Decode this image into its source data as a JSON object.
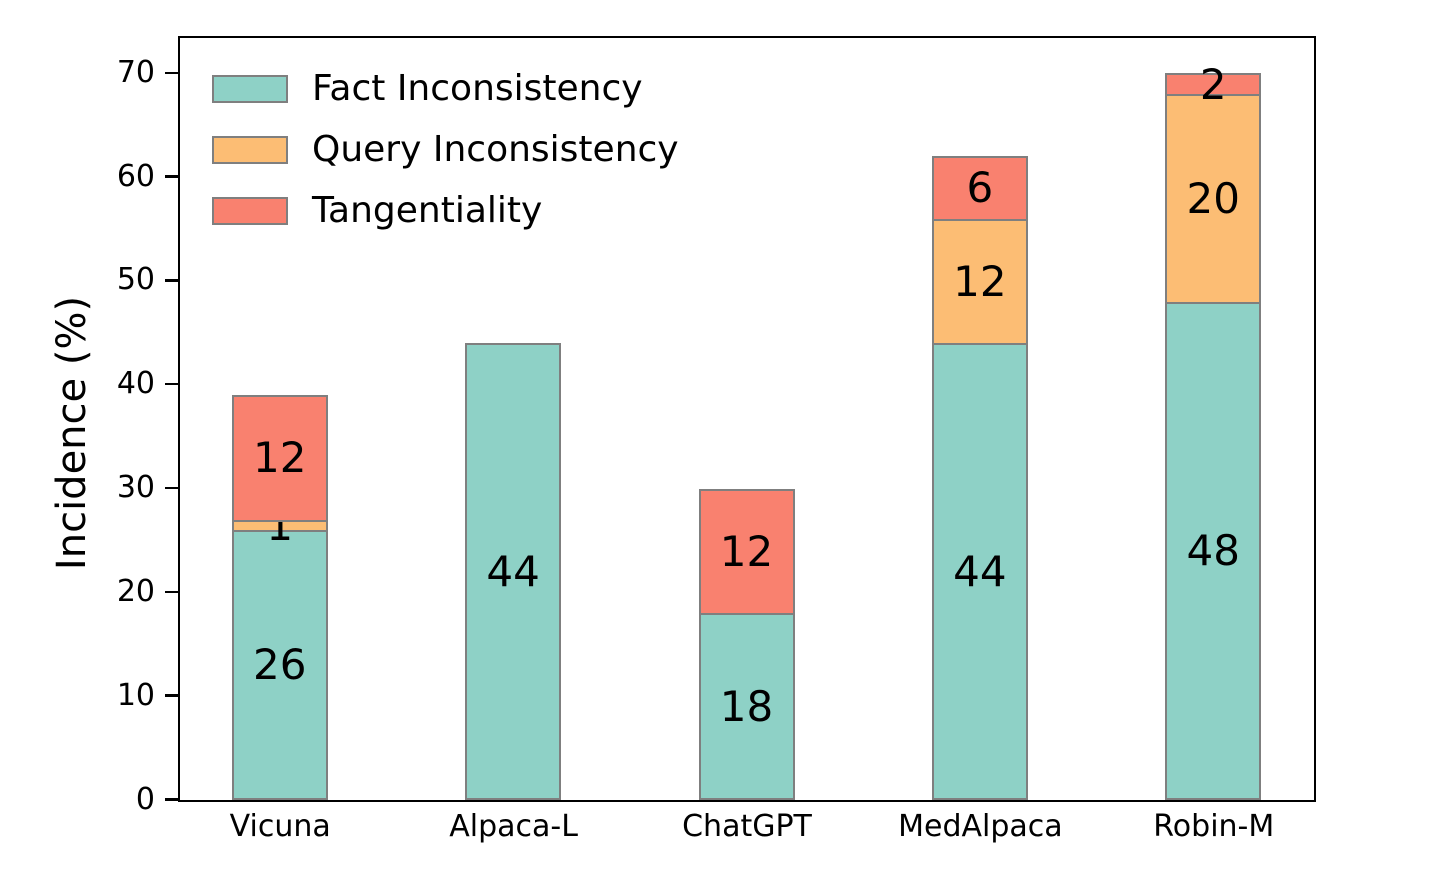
{
  "chart_data": {
    "type": "bar",
    "stacked": true,
    "title": "",
    "xlabel": "",
    "ylabel": "Incidence (%)",
    "categories": [
      "Vicuna",
      "Alpaca-L",
      "ChatGPT",
      "MedAlpaca",
      "Robin-M"
    ],
    "series": [
      {
        "name": "Fact Inconsistency",
        "color": "#8ed1c6",
        "values": [
          26,
          44,
          18,
          44,
          48
        ]
      },
      {
        "name": "Query Inconsistency",
        "color": "#fcbd74",
        "values": [
          1,
          0,
          0,
          12,
          20
        ]
      },
      {
        "name": "Tangentiality",
        "color": "#f9816f",
        "values": [
          12,
          0,
          12,
          6,
          2
        ]
      }
    ],
    "totals": [
      39,
      44,
      30,
      62,
      70
    ],
    "ylim": [
      0,
      73.3
    ],
    "yticks": [
      0,
      10,
      20,
      30,
      40,
      50,
      60,
      70
    ],
    "bar_edge_color": "#7f7f7f",
    "axis_color": "#000000",
    "background_color": "#ffffff",
    "grid": false,
    "legend_position": "upper-left",
    "bar_value_labels_shown": true
  }
}
